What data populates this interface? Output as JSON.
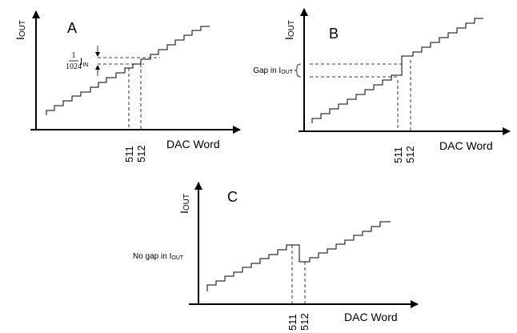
{
  "panels": [
    {
      "label": "A",
      "ylabel_main": "I",
      "ylabel_sub": "OUT",
      "xlabel": "DAC Word",
      "tick_left": "511",
      "tick_right": "512",
      "annotation": {
        "fraction_num": "1",
        "fraction_den": "1024",
        "symbol_main": "I",
        "symbol_sub": "IN"
      }
    },
    {
      "label": "B",
      "ylabel_main": "I",
      "ylabel_sub": "OUT",
      "xlabel": "DAC Word",
      "tick_left": "511",
      "tick_right": "512",
      "annotation": {
        "text_main": "Gap in I",
        "text_sub": "OUT"
      }
    },
    {
      "label": "C",
      "ylabel_main": "I",
      "ylabel_sub": "OUT",
      "xlabel": "DAC Word",
      "tick_left": "511",
      "tick_right": "512",
      "annotation": {
        "text_main": "No gap in I",
        "text_sub": "OUT"
      }
    }
  ]
}
